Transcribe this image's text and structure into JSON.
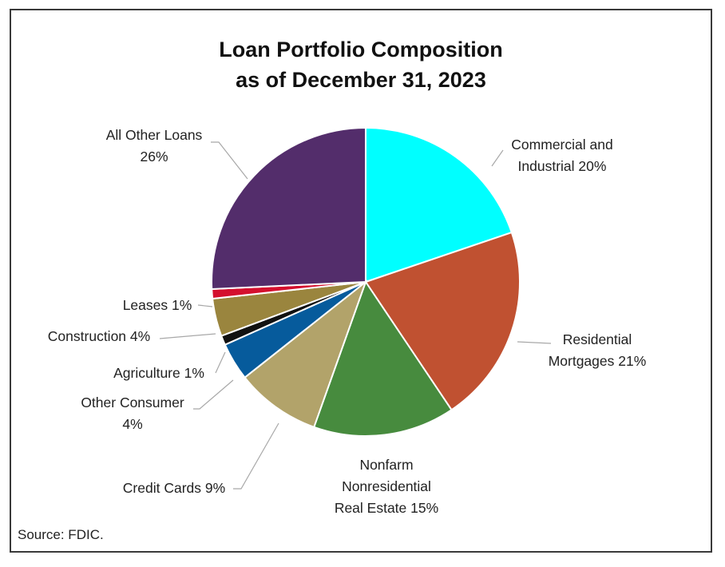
{
  "chart_data": {
    "type": "pie",
    "title_line1": "Loan Portfolio Composition",
    "title_line2": "as of December 31, 2023",
    "start_angle_deg": 0,
    "direction": "clockwise",
    "slices": [
      {
        "name": "Commercial and Industrial",
        "value": 20,
        "label_lines": [
          "Commercial and",
          "Industrial  20%"
        ],
        "color": "#00ffff"
      },
      {
        "name": "Residential Mortgages",
        "value": 21,
        "label_lines": [
          "Residential",
          "Mortgages 21%"
        ],
        "color": "#c05131"
      },
      {
        "name": "Nonfarm Nonresidential Real Estate",
        "value": 15,
        "label_lines": [
          "Nonfarm",
          "Nonresidential",
          "Real Estate 15%"
        ],
        "color": "#478b3e"
      },
      {
        "name": "Credit Cards",
        "value": 9,
        "label_lines": [
          "Credit Cards 9%"
        ],
        "color": "#b2a36a"
      },
      {
        "name": "Other Consumer",
        "value": 4,
        "label_lines": [
          "Other Consumer",
          "4%"
        ],
        "color": "#065b9c"
      },
      {
        "name": "Agriculture",
        "value": 1,
        "label_lines": [
          "Agriculture 1%"
        ],
        "color": "#111111"
      },
      {
        "name": "Construction",
        "value": 4,
        "label_lines": [
          "Construction 4%"
        ],
        "color": "#9a853e"
      },
      {
        "name": "Leases",
        "value": 1,
        "label_lines": [
          "Leases 1%"
        ],
        "color": "#d4102e"
      },
      {
        "name": "All Other Loans",
        "value": 26,
        "label_lines": [
          "All Other Loans",
          "26%"
        ],
        "color": "#532d6b"
      }
    ],
    "source": "Source: FDIC."
  }
}
